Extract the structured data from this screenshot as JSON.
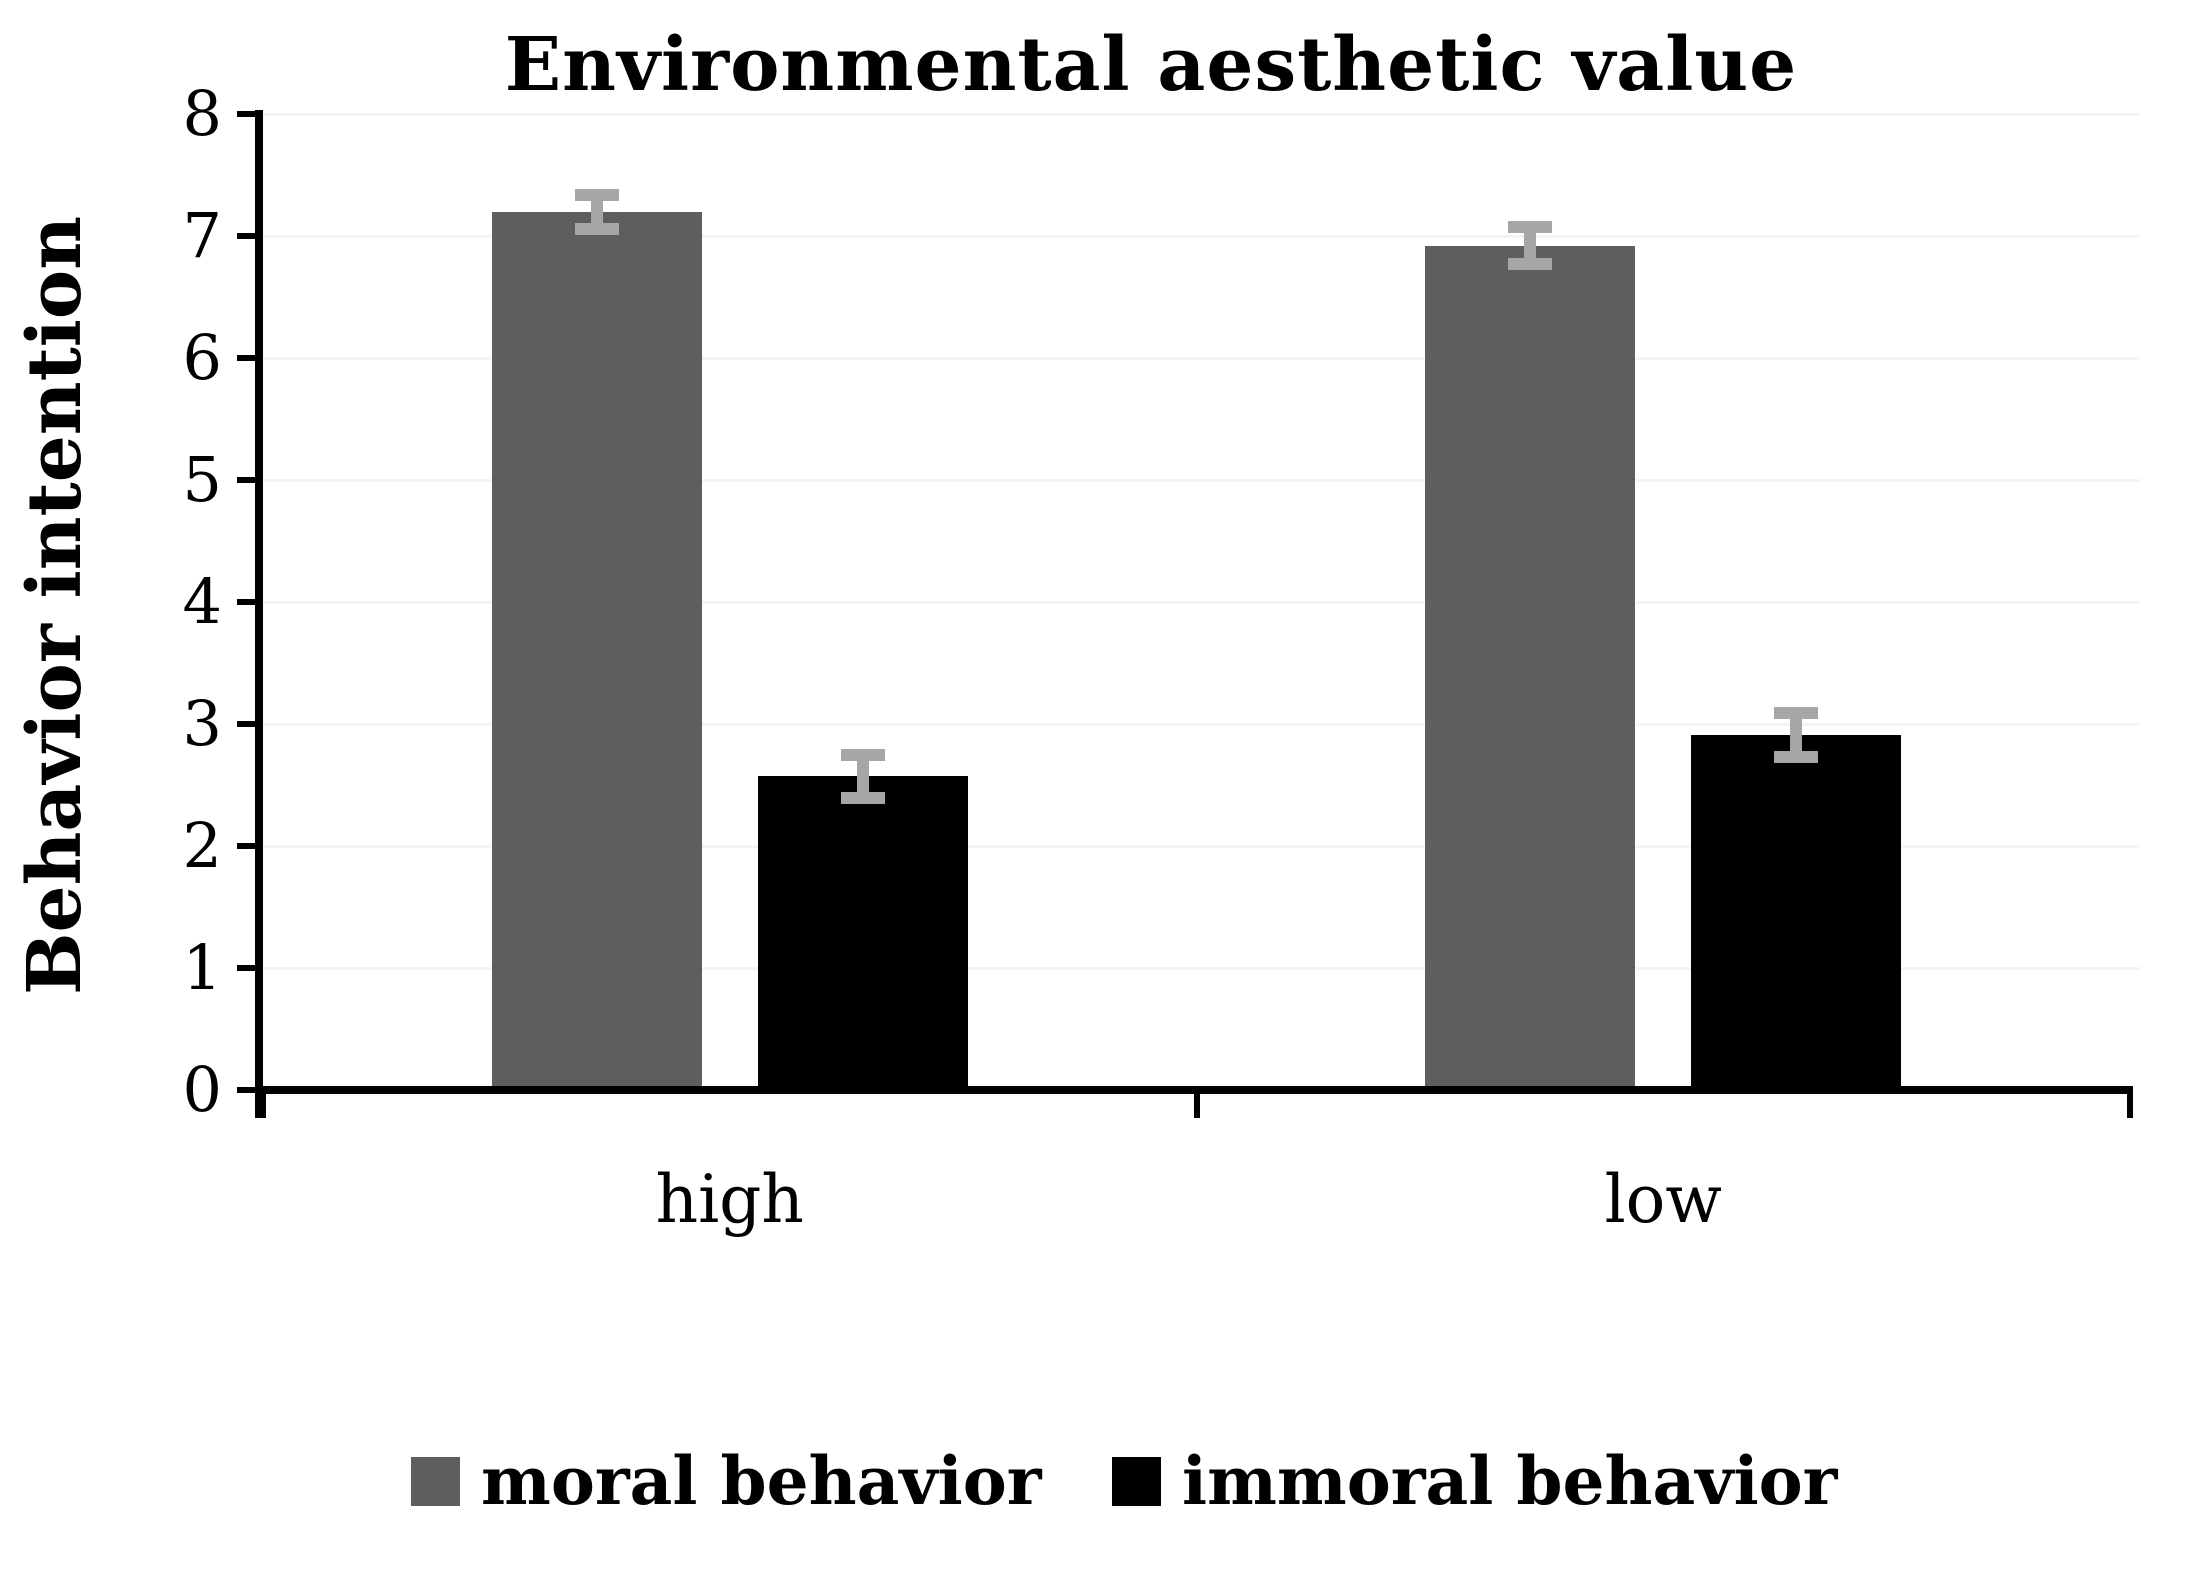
{
  "chart_data": {
    "type": "bar",
    "title": "Environmental aesthetic value",
    "xlabel": "",
    "ylabel": "Behavior intention",
    "ylim": [
      0,
      8
    ],
    "y_ticks": [
      0,
      1,
      2,
      3,
      4,
      5,
      6,
      7,
      8
    ],
    "categories": [
      "high",
      "low"
    ],
    "series": [
      {
        "name": "moral behavior",
        "color": "#5e5e5e",
        "values": [
          7.2,
          6.92
        ],
        "errors": [
          0.14,
          0.15
        ]
      },
      {
        "name": "immoral behavior",
        "color": "#000000",
        "values": [
          2.57,
          2.91
        ],
        "errors": [
          0.18,
          0.18
        ]
      }
    ],
    "error_bar_color": "#a6a6a6",
    "grid": true,
    "legend_position": "bottom"
  }
}
